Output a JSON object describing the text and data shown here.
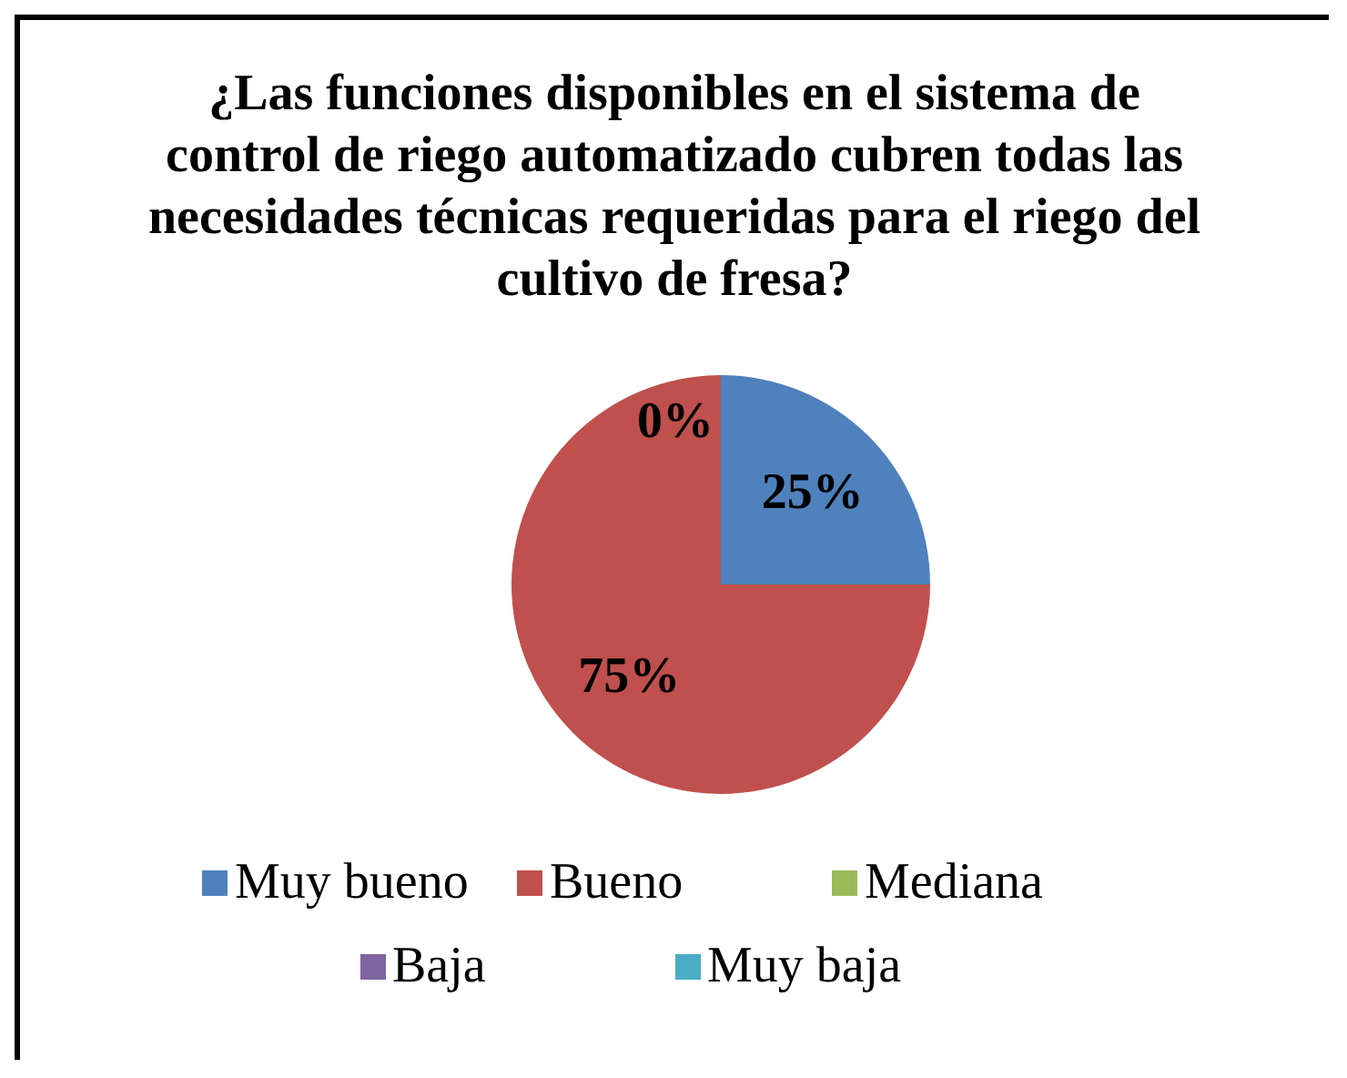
{
  "chart_data": {
    "type": "pie",
    "title": "¿Las funciones disponibles en el sistema de control de riego automatizado cubren todas las necesidades técnicas requeridas para el riego del cultivo de fresa?",
    "categories": [
      "Muy bueno",
      "Bueno",
      "Mediana",
      "Baja",
      "Muy baja"
    ],
    "values": [
      25,
      75,
      0,
      0,
      0
    ],
    "colors": [
      "#4f81bd",
      "#c0504d",
      "#9bbb59",
      "#8064a2",
      "#4bacc6"
    ],
    "value_labels": [
      "25%",
      "75%",
      "0%",
      null,
      null
    ],
    "legend": "bottom"
  }
}
